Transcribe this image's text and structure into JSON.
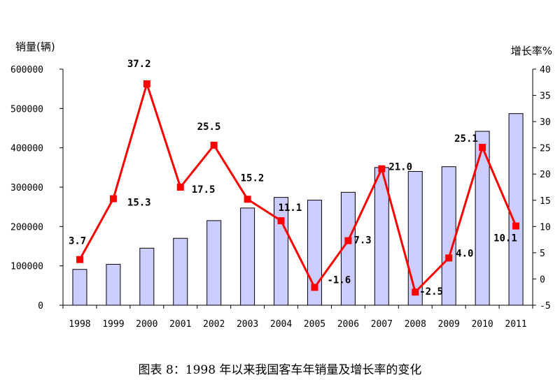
{
  "chart_data": {
    "type": "bar",
    "categories": [
      "1998",
      "1999",
      "2000",
      "2001",
      "2002",
      "2003",
      "2004",
      "2005",
      "2006",
      "2007",
      "2008",
      "2009",
      "2010",
      "2011"
    ],
    "series": [
      {
        "type": "bar",
        "axis": "left",
        "color": "#ccccff",
        "values": [
          91000,
          104000,
          145000,
          170000,
          215000,
          247000,
          274000,
          267000,
          287000,
          350000,
          340000,
          352000,
          442000,
          487000
        ]
      },
      {
        "type": "line",
        "axis": "right",
        "color": "#ff0000",
        "values": [
          3.7,
          15.3,
          37.2,
          17.5,
          25.5,
          15.2,
          11.1,
          -1.6,
          7.3,
          21.0,
          -2.5,
          4.0,
          25.1,
          10.1
        ],
        "labels": [
          "3.7",
          "15.3",
          "37.2",
          "17.5",
          "25.5",
          "15.2",
          "11.1",
          "-1.6",
          "7.3",
          "21.0",
          "-2.5",
          "4.0",
          "25.1",
          "10.1"
        ]
      }
    ],
    "ylabel": "销量(辆)",
    "y2label": "增长率%",
    "ylim": [
      0,
      600000
    ],
    "y2lim": [
      -5,
      40
    ],
    "yticks": [
      "0",
      "100000",
      "200000",
      "300000",
      "400000",
      "500000",
      "600000"
    ],
    "y2ticks": [
      "-5",
      "0",
      "5",
      "10",
      "15",
      "20",
      "25",
      "30",
      "35",
      "40"
    ],
    "grid": false,
    "caption": "图表 8：1998 年以来我国客车年销量及增长率的变化"
  }
}
